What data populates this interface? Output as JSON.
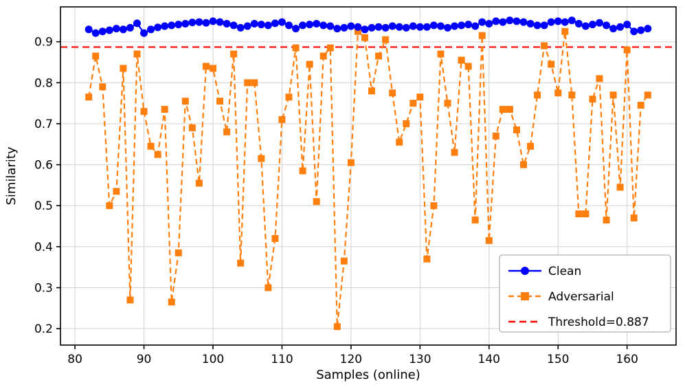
{
  "chart_data": {
    "type": "line",
    "title": "",
    "xlabel": "Samples (online)",
    "ylabel": "Similarity",
    "xlim": [
      77.9,
      167.1
    ],
    "ylim": [
      0.16,
      0.985
    ],
    "xticks": [
      80,
      90,
      100,
      110,
      120,
      130,
      140,
      150,
      160
    ],
    "yticks": [
      0.2,
      0.3,
      0.4,
      0.5,
      0.6,
      0.7,
      0.8,
      0.9
    ],
    "grid": true,
    "legend_position": "lower right",
    "x": [
      82,
      83,
      84,
      85,
      86,
      87,
      88,
      89,
      90,
      91,
      92,
      93,
      94,
      95,
      96,
      97,
      98,
      99,
      100,
      101,
      102,
      103,
      104,
      105,
      106,
      107,
      108,
      109,
      110,
      111,
      112,
      113,
      114,
      115,
      116,
      117,
      118,
      119,
      120,
      121,
      122,
      123,
      124,
      125,
      126,
      127,
      128,
      129,
      130,
      131,
      132,
      133,
      134,
      135,
      136,
      137,
      138,
      139,
      140,
      141,
      142,
      143,
      144,
      145,
      146,
      147,
      148,
      149,
      150,
      151,
      152,
      153,
      154,
      155,
      156,
      157,
      158,
      159,
      160,
      161,
      162,
      163
    ],
    "series": [
      {
        "name": "Clean",
        "color": "#0000ff",
        "style": "solid",
        "marker": "circle",
        "values": [
          0.93,
          0.921,
          0.925,
          0.928,
          0.932,
          0.93,
          0.934,
          0.945,
          0.921,
          0.93,
          0.935,
          0.938,
          0.94,
          0.942,
          0.944,
          0.947,
          0.948,
          0.946,
          0.95,
          0.948,
          0.944,
          0.94,
          0.934,
          0.938,
          0.944,
          0.942,
          0.94,
          0.945,
          0.948,
          0.94,
          0.932,
          0.94,
          0.942,
          0.944,
          0.94,
          0.938,
          0.932,
          0.934,
          0.938,
          0.936,
          0.93,
          0.934,
          0.936,
          0.934,
          0.938,
          0.936,
          0.934,
          0.938,
          0.936,
          0.936,
          0.94,
          0.938,
          0.934,
          0.938,
          0.94,
          0.942,
          0.938,
          0.948,
          0.944,
          0.95,
          0.948,
          0.952,
          0.95,
          0.948,
          0.944,
          0.94,
          0.94,
          0.948,
          0.95,
          0.948,
          0.952,
          0.944,
          0.938,
          0.942,
          0.946,
          0.94,
          0.932,
          0.936,
          0.942,
          0.925,
          0.928,
          0.932
        ]
      },
      {
        "name": "Adversarial",
        "color": "#ff7f0e",
        "style": "dashed",
        "marker": "square",
        "values": [
          0.765,
          0.865,
          0.79,
          0.5,
          0.535,
          0.835,
          0.27,
          0.87,
          0.73,
          0.645,
          0.625,
          0.735,
          0.265,
          0.385,
          0.755,
          0.69,
          0.555,
          0.84,
          0.835,
          0.755,
          0.68,
          0.87,
          0.36,
          0.8,
          0.8,
          0.615,
          0.3,
          0.42,
          0.71,
          0.765,
          0.885,
          0.585,
          0.845,
          0.51,
          0.865,
          0.885,
          0.205,
          0.365,
          0.605,
          0.925,
          0.91,
          0.78,
          0.865,
          0.905,
          0.775,
          0.655,
          0.7,
          0.75,
          0.765,
          0.37,
          0.5,
          0.87,
          0.75,
          0.63,
          0.855,
          0.84,
          0.465,
          0.915,
          0.415,
          0.67,
          0.735,
          0.735,
          0.685,
          0.6,
          0.645,
          0.77,
          0.89,
          0.845,
          0.775,
          0.925,
          0.77,
          0.48,
          0.48,
          0.76,
          0.81,
          0.465,
          0.77,
          0.545,
          0.88,
          0.47,
          0.745,
          0.77
        ]
      }
    ],
    "threshold": {
      "label": "Threshold=0.887",
      "value": 0.887,
      "color": "#ff0000",
      "style": "dashed"
    },
    "colors": {
      "grid": "#d0d0d0",
      "spine": "#000000",
      "legend_border": "#b0b0b0",
      "background": "#ffffff"
    }
  }
}
